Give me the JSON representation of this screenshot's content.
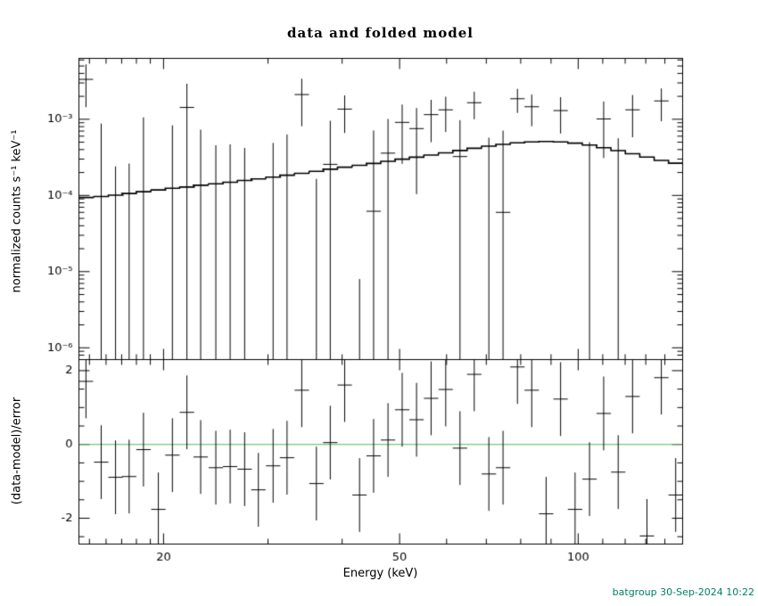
{
  "stamp": {
    "text": "batgroup 30-Sep-2024 10:22",
    "color": "#008066"
  },
  "chart_data": {
    "type": "scatter",
    "title": "data and folded model",
    "xlabel": "Energy (keV)",
    "xscale": "log",
    "xlim": [
      14.4,
      150
    ],
    "xticks": [
      20,
      50,
      100
    ],
    "xtick_labels": [
      "20",
      "50",
      "100"
    ],
    "xticks_minor": [
      15,
      16,
      17,
      18,
      19,
      30,
      40,
      60,
      70,
      80,
      90,
      110,
      120,
      130,
      140,
      150
    ],
    "bin_halfwidth_factor": 1.0283,
    "top_panel": {
      "ylabel": "normalized counts s⁻¹ keV⁻¹",
      "yscale": "log",
      "ylim": [
        7e-07,
        0.0063
      ],
      "yticks": [
        0.001,
        0.0001,
        1e-05,
        1e-06
      ],
      "ytick_labels": [
        "10⁻³",
        "10⁻⁴",
        "10⁻⁵",
        "10⁻⁶"
      ]
    },
    "bottom_panel": {
      "ylabel": "(data-model)/error",
      "ylim": [
        -2.7,
        2.3
      ],
      "yticks": [
        2,
        0,
        -2
      ],
      "ytick_labels": [
        "2",
        "0",
        "-2"
      ],
      "residual_err": 1,
      "zero_line_color": "#55bb55"
    },
    "colors": {
      "data": "#000000",
      "model": "#000000",
      "frame": "#000000"
    },
    "series": {
      "energy_kev": [
        14.8,
        15.7,
        16.6,
        17.5,
        18.5,
        19.6,
        20.7,
        21.9,
        23.1,
        24.5,
        25.9,
        27.4,
        28.9,
        30.6,
        32.3,
        34.2,
        36.2,
        38.2,
        40.4,
        42.8,
        45.2,
        47.8,
        50.5,
        53.4,
        56.5,
        59.8,
        63.2,
        66.8,
        70.7,
        74.7,
        79.0,
        83.5,
        88.3,
        93.4,
        98.8,
        104.5,
        110.4,
        116.8,
        123.5,
        130.6,
        138.1,
        146.0
      ],
      "rate": [
        0.00334,
        -0.000623,
        -0.00106,
        -0.000938,
        -4.2e-05,
        -0.00164,
        -0.000166,
        0.00143,
        -0.00017,
        -0.000394,
        -0.000331,
        -0.000379,
        -0.000758,
        -0.000261,
        -6.8e-05,
        0.00211,
        -0.000535,
        0.000256,
        0.00136,
        -0.000642,
        6.2e-05,
        0.000359,
        0.00091,
        0.000754,
        0.00115,
        0.00133,
        0.000324,
        0.00165,
        -7.7e-05,
        6e-05,
        0.00186,
        0.00146,
        -0.000712,
        0.0013,
        -0.000746,
        -0.0002,
        0.00101,
        -0.000137,
        0.00133,
        -0.00154,
        0.00174,
        -0.000831
      ],
      "rate_err": [
        0.0019,
        0.0015,
        0.0013,
        0.0012,
        0.0011,
        0.001,
        0.001,
        0.0015,
        0.0009,
        0.00085,
        0.0008,
        0.0008,
        0.00075,
        0.00075,
        0.0007,
        0.0013,
        0.0007,
        0.0007,
        0.0007,
        0.00065,
        0.00065,
        0.00065,
        0.00065,
        0.00065,
        0.00065,
        0.00065,
        0.00065,
        0.00065,
        0.00065,
        0.00065,
        0.00065,
        0.00065,
        0.00065,
        0.00065,
        0.0007,
        0.0007,
        0.0007,
        0.0007,
        0.00075,
        0.00075,
        0.0008,
        0.0008
      ],
      "model": [
        9.4e-05,
        9.7e-05,
        0.000101,
        0.000106,
        0.000112,
        0.000118,
        0.000124,
        0.000129,
        0.000136,
        0.000142,
        0.000149,
        0.000157,
        0.000165,
        0.000174,
        0.000184,
        0.000195,
        0.000207,
        0.000221,
        0.000235,
        0.000249,
        0.000263,
        0.000281,
        0.000299,
        0.000318,
        0.000339,
        0.000363,
        0.000389,
        0.000416,
        0.000443,
        0.000469,
        0.00049,
        0.000504,
        0.00051,
        0.000505,
        0.000486,
        0.000458,
        0.000424,
        0.000388,
        0.000353,
        0.000319,
        0.000288,
        0.000265
      ],
      "residual": [
        1.71,
        -0.48,
        -0.89,
        -0.87,
        -0.14,
        -1.76,
        -0.29,
        0.87,
        -0.34,
        -0.63,
        -0.6,
        -0.67,
        -1.23,
        -0.58,
        -0.36,
        1.47,
        -1.06,
        0.05,
        1.61,
        -1.37,
        -0.31,
        0.12,
        0.94,
        0.67,
        1.25,
        1.49,
        -0.1,
        1.9,
        -0.8,
        -0.63,
        2.1,
        1.47,
        -1.88,
        1.23,
        -1.76,
        -0.94,
        0.84,
        -0.75,
        1.3,
        -2.48,
        1.81,
        -1.37
      ]
    }
  }
}
